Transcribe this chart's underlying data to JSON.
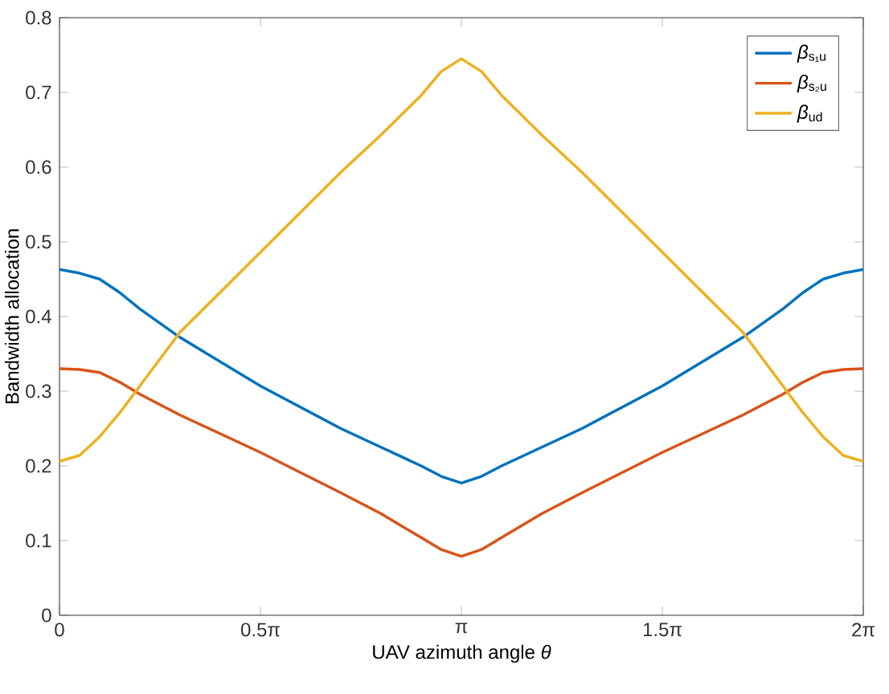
{
  "chart_data": {
    "type": "line",
    "xlabel": "UAV azimuth angle *θ*",
    "ylabel": "Bandwidth allocation",
    "x": [
      0,
      0.1571,
      0.3142,
      0.4712,
      0.6283,
      0.9425,
      1.5708,
      2.1991,
      2.5133,
      2.8274,
      2.9845,
      3.1416,
      3.2987,
      3.4558,
      3.7699,
      4.0841,
      4.7124,
      5.3407,
      5.6549,
      5.8119,
      5.969,
      6.1261,
      6.2832
    ],
    "series": [
      {
        "name": "*β*$_{s₁u}$",
        "color": "#0072bd",
        "values": [
          0.463,
          0.458,
          0.45,
          0.432,
          0.41,
          0.372,
          0.307,
          0.25,
          0.225,
          0.2,
          0.186,
          0.177,
          0.186,
          0.2,
          0.225,
          0.25,
          0.307,
          0.372,
          0.41,
          0.432,
          0.45,
          0.458,
          0.463
        ]
      },
      {
        "name": "*β*$_{s₂u}$",
        "color": "#d95319",
        "values": [
          0.33,
          0.329,
          0.325,
          0.312,
          0.296,
          0.268,
          0.218,
          0.164,
          0.136,
          0.104,
          0.088,
          0.079,
          0.088,
          0.104,
          0.136,
          0.164,
          0.218,
          0.268,
          0.296,
          0.312,
          0.325,
          0.329,
          0.33
        ]
      },
      {
        "name": "*β*$_{ud}$",
        "color": "#edb120",
        "values": [
          0.206,
          0.214,
          0.239,
          0.271,
          0.307,
          0.379,
          0.486,
          0.593,
          0.643,
          0.696,
          0.728,
          0.745,
          0.728,
          0.696,
          0.643,
          0.593,
          0.486,
          0.379,
          0.307,
          0.271,
          0.239,
          0.214,
          0.206
        ]
      }
    ],
    "xlim": [
      0,
      6.2832
    ],
    "xticks": [
      0,
      {
        "value": 1.5708,
        "label": "0.5π"
      },
      {
        "value": 3.1416,
        "label": "π"
      },
      {
        "value": 4.7124,
        "label": "1.5π"
      },
      {
        "value": 6.2832,
        "label": "2π"
      }
    ],
    "ylim": [
      0,
      0.8
    ],
    "yticks": [
      0,
      0.1,
      0.2,
      0.3,
      0.4,
      0.5,
      0.6,
      0.7,
      0.8
    ],
    "legend": "top right",
    "grid": false,
    "marker": "none",
    "line_style": "solid"
  }
}
